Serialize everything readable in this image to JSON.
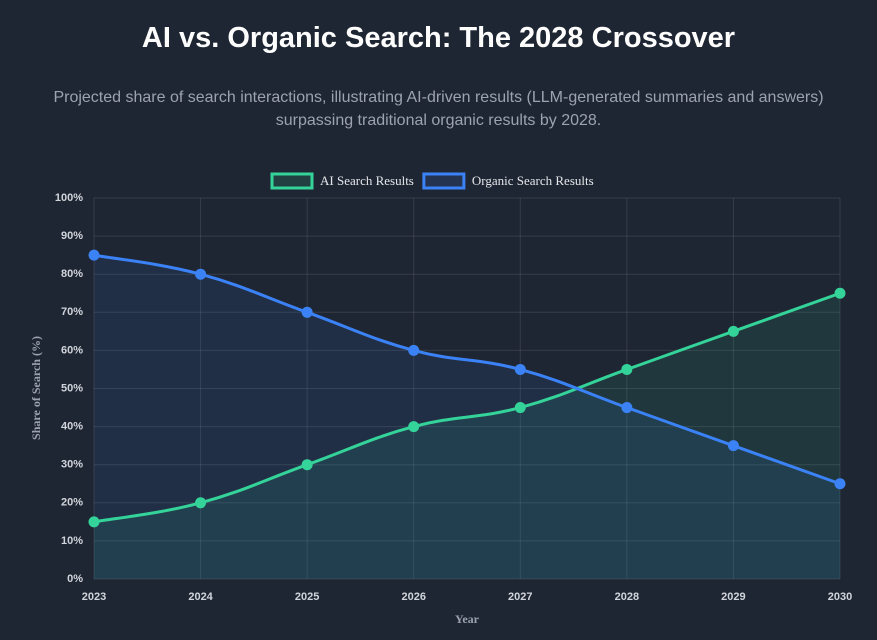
{
  "chart_data": {
    "type": "line",
    "title": "AI vs. Organic Search: The 2028 Crossover",
    "subtitle": "Projected share of search interactions, illustrating AI-driven results (LLM-generated summaries and answers) surpassing traditional organic results by 2028.",
    "x_label": "Year",
    "y_label": "Share of Search (%)",
    "categories": [
      "2023",
      "2024",
      "2025",
      "2026",
      "2027",
      "2028",
      "2029",
      "2030"
    ],
    "series": [
      {
        "name": "AI Search Results",
        "color": "#34d399",
        "values": [
          15,
          20,
          30,
          40,
          45,
          55,
          65,
          75
        ]
      },
      {
        "name": "Organic Search Results",
        "color": "#3b82f6",
        "values": [
          85,
          80,
          70,
          60,
          55,
          45,
          35,
          25
        ]
      }
    ],
    "ylim": [
      0,
      100
    ],
    "yticks": [
      {
        "value": 0,
        "label": "0%"
      },
      {
        "value": 10,
        "label": "10%"
      },
      {
        "value": 20,
        "label": "20%"
      },
      {
        "value": 30,
        "label": "30%"
      },
      {
        "value": 40,
        "label": "40%"
      },
      {
        "value": 50,
        "label": "50%"
      },
      {
        "value": 60,
        "label": "60%"
      },
      {
        "value": 70,
        "label": "70%"
      },
      {
        "value": 80,
        "label": "80%"
      },
      {
        "value": 90,
        "label": "90%"
      },
      {
        "value": 100,
        "label": "100%"
      }
    ],
    "grid": true,
    "legend": "top",
    "filled": true
  }
}
